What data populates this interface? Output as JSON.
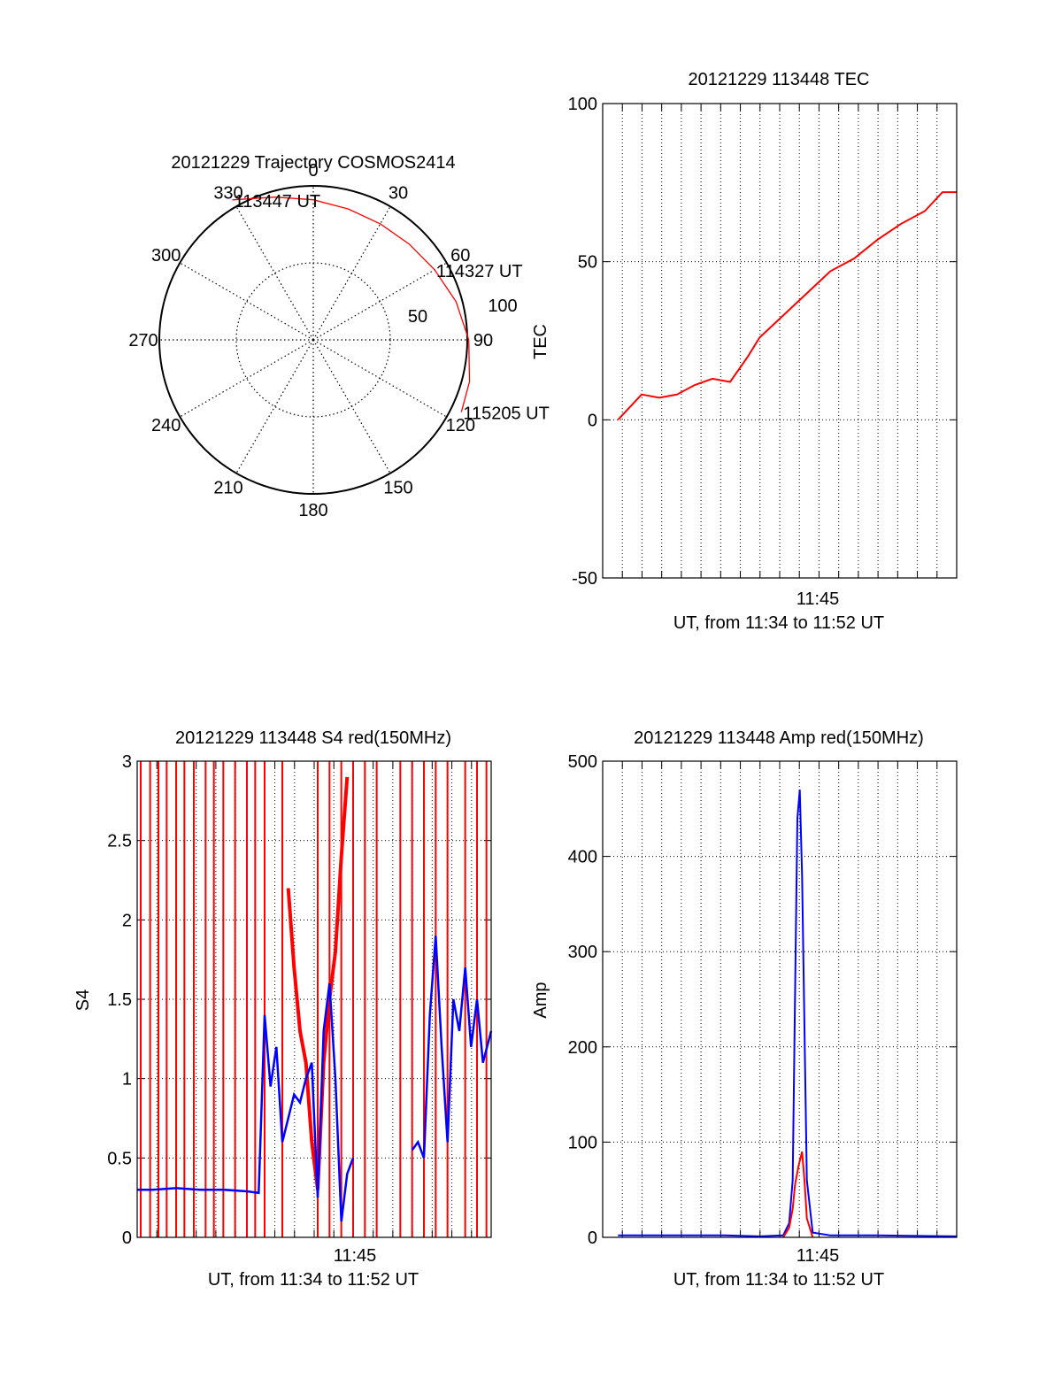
{
  "chart_data": [
    {
      "type": "polar",
      "title": "20121229 Trajectory COSMOS2414",
      "azimuth_labels": [
        "0",
        "30",
        "60",
        "90",
        "120",
        "150",
        "180",
        "210",
        "240",
        "270",
        "300",
        "330"
      ],
      "elevation_labels": [
        "50",
        "100"
      ],
      "trajectory": {
        "color": "#ff0000",
        "points": [
          {
            "az": 330,
            "r": 105
          },
          {
            "az": 345,
            "r": 96
          },
          {
            "az": 0,
            "r": 91
          },
          {
            "az": 15,
            "r": 88
          },
          {
            "az": 30,
            "r": 87
          },
          {
            "az": 45,
            "r": 88
          },
          {
            "az": 60,
            "r": 91
          },
          {
            "az": 75,
            "r": 96
          },
          {
            "az": 90,
            "r": 101
          },
          {
            "az": 105,
            "r": 105
          },
          {
            "az": 116,
            "r": 107
          }
        ]
      },
      "time_labels": [
        {
          "text": "113447 UT",
          "az": 330,
          "r": 105
        },
        {
          "text": "114327 UT",
          "az": 60,
          "r": 91
        },
        {
          "text": "115205 UT",
          "az": 116,
          "r": 107
        }
      ]
    },
    {
      "type": "line",
      "title": "20121229 113448 TEC",
      "xlabel": "UT, from 11:34 to 11:52 UT",
      "ylabel": "TEC",
      "xtick_label": "11:45",
      "xlim": [
        11.567,
        11.867
      ],
      "ylim": [
        -50,
        100
      ],
      "yticks": [
        "-50",
        "0",
        "50",
        "100"
      ],
      "grid": true,
      "series": [
        {
          "color": "#ff0000",
          "x": [
            11.58,
            11.6,
            11.615,
            11.63,
            11.645,
            11.66,
            11.675,
            11.69,
            11.7,
            11.72,
            11.74,
            11.76,
            11.78,
            11.8,
            11.82,
            11.84,
            11.855,
            11.867
          ],
          "y": [
            0,
            8,
            7,
            8,
            11,
            13,
            12,
            20,
            26,
            33,
            40,
            47,
            51,
            57,
            62,
            66,
            72,
            72
          ]
        }
      ]
    },
    {
      "type": "line",
      "title": "20121229 113448 S4 red(150MHz)",
      "xlabel": "UT, from 11:34 to 11:52 UT",
      "ylabel": "S4",
      "xtick_label": "11:45",
      "xlim": [
        11.567,
        11.867
      ],
      "ylim": [
        0,
        3
      ],
      "yticks": [
        "0",
        "0.5",
        "1",
        "1.5",
        "2",
        "2.5",
        "3"
      ],
      "grid": true,
      "series": [
        {
          "color": "#ff0000",
          "spikes_x": [
            11.57,
            11.578,
            11.585,
            11.592,
            11.6,
            11.607,
            11.615,
            11.625,
            11.632,
            11.64,
            11.65,
            11.66,
            11.667,
            11.675,
            11.69,
            11.72,
            11.73,
            11.74,
            11.75,
            11.76,
            11.77,
            11.79,
            11.8,
            11.81,
            11.82,
            11.83,
            11.845,
            11.855,
            11.863
          ],
          "band": {
            "x": [
              11.695,
              11.7,
              11.705,
              11.71,
              11.715,
              11.72,
              11.725,
              11.73,
              11.735,
              11.74,
              11.745
            ],
            "y": [
              2.2,
              1.7,
              1.3,
              1.1,
              0.6,
              0.3,
              1.1,
              1.5,
              1.8,
              2.4,
              2.9
            ]
          }
        },
        {
          "color": "#0000ff",
          "x": [
            11.567,
            11.58,
            11.6,
            11.62,
            11.64,
            11.66,
            11.67,
            11.675,
            11.68,
            11.685,
            11.69,
            11.695,
            11.7,
            11.705,
            11.71,
            11.715,
            11.72,
            11.725,
            11.73,
            11.735,
            11.74,
            11.745,
            11.75
          ],
          "y": [
            0.3,
            0.3,
            0.31,
            0.3,
            0.3,
            0.29,
            0.28,
            1.4,
            0.95,
            1.2,
            0.6,
            0.75,
            0.9,
            0.85,
            1.0,
            1.1,
            0.25,
            1.3,
            1.6,
            1.0,
            0.1,
            0.4,
            0.5
          ]
        },
        {
          "color": "#0000ff",
          "x": [
            11.8,
            11.805,
            11.81,
            11.815,
            11.82,
            11.825,
            11.83,
            11.835,
            11.84,
            11.845,
            11.85,
            11.855,
            11.86,
            11.867
          ],
          "y": [
            0.55,
            0.6,
            0.5,
            1.4,
            1.9,
            1.2,
            0.6,
            1.5,
            1.3,
            1.7,
            1.2,
            1.5,
            1.1,
            1.3
          ]
        }
      ]
    },
    {
      "type": "line",
      "title": "20121229 113448 Amp red(150MHz)",
      "xlabel": "UT, from 11:34 to 11:52 UT",
      "ylabel": "Amp",
      "xtick_label": "11:45",
      "xlim": [
        11.567,
        11.867
      ],
      "ylim": [
        0,
        500
      ],
      "yticks": [
        "0",
        "100",
        "200",
        "300",
        "400",
        "500"
      ],
      "grid": true,
      "series": [
        {
          "color": "#0000ff",
          "x": [
            11.58,
            11.62,
            11.67,
            11.7,
            11.72,
            11.725,
            11.728,
            11.73,
            11.732,
            11.734,
            11.736,
            11.738,
            11.74,
            11.745,
            11.76,
            11.8,
            11.867
          ],
          "y": [
            2,
            2,
            2,
            1,
            2,
            15,
            60,
            250,
            440,
            470,
            380,
            220,
            60,
            5,
            2,
            2,
            1
          ]
        },
        {
          "color": "#ff0000",
          "x": [
            11.72,
            11.725,
            11.728,
            11.73,
            11.733,
            11.736,
            11.738,
            11.74,
            11.745
          ],
          "y": [
            0,
            10,
            30,
            55,
            75,
            90,
            60,
            20,
            0
          ]
        }
      ]
    }
  ]
}
